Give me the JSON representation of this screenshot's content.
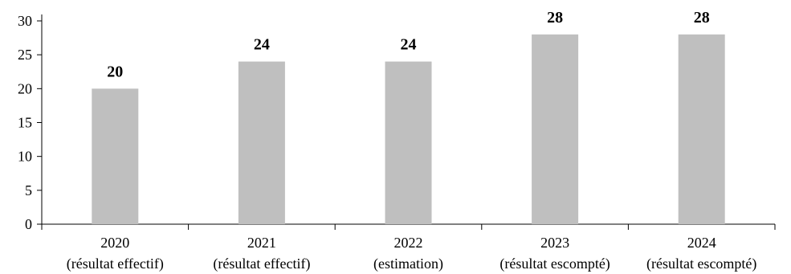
{
  "chart_data": {
    "type": "bar",
    "categories": [
      [
        "2020",
        "(résultat effectif)"
      ],
      [
        "2021",
        "(résultat effectif)"
      ],
      [
        "2022",
        "(estimation)"
      ],
      [
        "2023",
        "(résultat escompté)"
      ],
      [
        "2024",
        "(résultat escompté)"
      ]
    ],
    "values": [
      20,
      24,
      24,
      28,
      28
    ],
    "data_labels": [
      "20",
      "24",
      "24",
      "28",
      "28"
    ],
    "ylim": [
      0,
      30
    ],
    "yticks": [
      0,
      5,
      10,
      15,
      20,
      25,
      30
    ],
    "title": "",
    "xlabel": "",
    "ylabel": "",
    "grid": false,
    "bar_color": "#bfbfbf"
  }
}
